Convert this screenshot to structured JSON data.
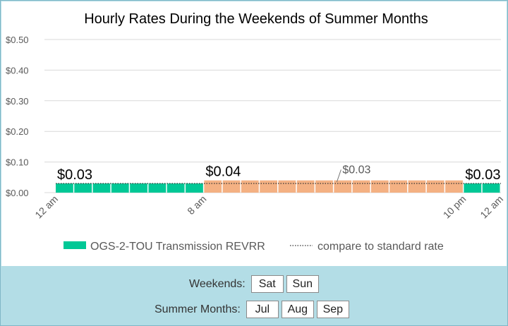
{
  "chart_data": {
    "type": "bar",
    "title": "Hourly Rates During the Weekends of Summer Months",
    "ylim": [
      0,
      0.5
    ],
    "y_ticks": [
      "$0.50",
      "$0.40",
      "$0.30",
      "$0.20",
      "$0.10",
      "$0.00"
    ],
    "y_tick_values": [
      0.5,
      0.4,
      0.3,
      0.2,
      0.1,
      0.0
    ],
    "x_tick_labels": [
      {
        "hour": 0,
        "label": "12 am"
      },
      {
        "hour": 8,
        "label": "8 am"
      },
      {
        "hour": 22,
        "label": "10 pm"
      },
      {
        "hour": 24,
        "label": "12 am"
      }
    ],
    "hours": [
      0,
      1,
      2,
      3,
      4,
      5,
      6,
      7,
      8,
      9,
      10,
      11,
      12,
      13,
      14,
      15,
      16,
      17,
      18,
      19,
      20,
      21,
      22,
      23
    ],
    "series": [
      {
        "name": "OGS-2-TOU Transmission REVRR",
        "values": [
          0.03,
          0.03,
          0.03,
          0.03,
          0.03,
          0.03,
          0.03,
          0.03,
          0.04,
          0.04,
          0.04,
          0.04,
          0.04,
          0.04,
          0.04,
          0.04,
          0.04,
          0.04,
          0.04,
          0.04,
          0.04,
          0.04,
          0.03,
          0.03
        ],
        "color_offpeak": "#00c896",
        "color_onpeak": "#f4b183"
      },
      {
        "name": "compare to standard rate",
        "style": "dotted",
        "value": 0.03
      }
    ],
    "data_labels": [
      {
        "hour": 0,
        "text": "$0.03"
      },
      {
        "hour": 8,
        "text": "$0.04"
      },
      {
        "hour": 22,
        "text": "$0.03"
      }
    ],
    "standard_label": "$0.03",
    "grid": true,
    "legend_position": "bottom"
  },
  "controls": {
    "weekends_label": "Weekends:",
    "weekend_days": [
      "Sat",
      "Sun"
    ],
    "summer_label": "Summer Months:",
    "summer_months": [
      "Jul",
      "Aug",
      "Sep"
    ]
  }
}
